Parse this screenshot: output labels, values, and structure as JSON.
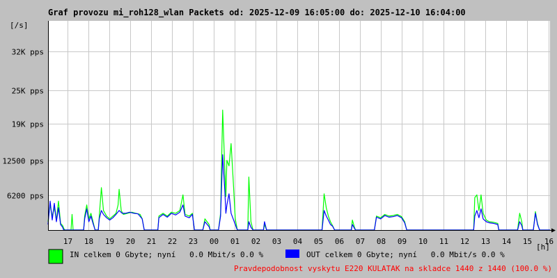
{
  "page_title": "Graf provozu mi_roh128_wlan Packets od: 2025-12-09 16:05:00 do: 2025-12-10 16:04:00",
  "legend": {
    "in_label": "IN celkem 0 Gbyte; nyní   0.0 Mbit/s 0.0 %",
    "out_label": "OUT celkem 0 Gbyte; nyní   0.0 Mbit/s 0.0 %"
  },
  "footer_note": "Pravdepodobnost vyskytu E220 KULATAK na skladce 1440 z 1440 (100.0 %)",
  "colors": {
    "background": "#c0c0c0",
    "plot": "#ffffff",
    "grid": "#c8c8c8",
    "in": "#00ff00",
    "out": "#0000ff",
    "note": "#ff0000"
  },
  "chart_data": {
    "type": "area",
    "ylabel": "[/s]",
    "xlabel": "[h]",
    "yticks": [
      {
        "value": 6200,
        "label": "6200 pps"
      },
      {
        "value": 12500,
        "label": "12500 pps"
      },
      {
        "value": 19000,
        "label": "19K pps"
      },
      {
        "value": 25000,
        "label": "25K pps"
      },
      {
        "value": 32000,
        "label": "32K pps"
      }
    ],
    "xticks": [
      "17",
      "18",
      "19",
      "20",
      "21",
      "22",
      "23",
      "00",
      "01",
      "02",
      "03",
      "04",
      "05",
      "06",
      "07",
      "08",
      "09",
      "10",
      "11",
      "12",
      "13",
      "14",
      "15",
      "16"
    ],
    "x_range_hours": [
      0,
      24
    ],
    "x_first_tick_offset_hours": 0.917,
    "ylim": [
      0,
      37500
    ],
    "grid": true,
    "series": [
      {
        "name": "IN",
        "color": "#00ff00",
        "points": [
          [
            0.0,
            1500
          ],
          [
            0.1,
            4500
          ],
          [
            0.2,
            2500
          ],
          [
            0.3,
            4000
          ],
          [
            0.4,
            1800
          ],
          [
            0.5,
            5200
          ],
          [
            0.6,
            1200
          ],
          [
            0.7,
            800
          ],
          [
            0.75,
            300
          ],
          [
            0.8,
            0
          ],
          [
            1.1,
            0
          ],
          [
            1.15,
            2800
          ],
          [
            1.2,
            0
          ],
          [
            1.7,
            0
          ],
          [
            1.75,
            2500
          ],
          [
            1.85,
            4500
          ],
          [
            1.95,
            2000
          ],
          [
            2.05,
            3000
          ],
          [
            2.15,
            1500
          ],
          [
            2.25,
            0
          ],
          [
            2.4,
            0
          ],
          [
            2.45,
            2500
          ],
          [
            2.55,
            7600
          ],
          [
            2.65,
            3500
          ],
          [
            2.8,
            2500
          ],
          [
            2.95,
            2000
          ],
          [
            3.1,
            2500
          ],
          [
            3.25,
            3000
          ],
          [
            3.35,
            4500
          ],
          [
            3.4,
            7300
          ],
          [
            3.5,
            3500
          ],
          [
            3.6,
            2800
          ],
          [
            3.8,
            3000
          ],
          [
            4.0,
            3200
          ],
          [
            4.2,
            3000
          ],
          [
            4.4,
            2800
          ],
          [
            4.5,
            2000
          ],
          [
            4.6,
            0
          ],
          [
            5.25,
            0
          ],
          [
            5.3,
            2500
          ],
          [
            5.5,
            3000
          ],
          [
            5.7,
            2500
          ],
          [
            5.9,
            3200
          ],
          [
            6.1,
            3000
          ],
          [
            6.3,
            3500
          ],
          [
            6.45,
            6300
          ],
          [
            6.55,
            2800
          ],
          [
            6.75,
            2500
          ],
          [
            6.9,
            3000
          ],
          [
            7.0,
            0
          ],
          [
            7.4,
            0
          ],
          [
            7.5,
            2000
          ],
          [
            7.7,
            1000
          ],
          [
            7.75,
            0
          ],
          [
            8.15,
            0
          ],
          [
            8.25,
            3000
          ],
          [
            8.35,
            21500
          ],
          [
            8.45,
            11000
          ],
          [
            8.5,
            6000
          ],
          [
            8.55,
            12500
          ],
          [
            8.65,
            11500
          ],
          [
            8.75,
            15500
          ],
          [
            8.85,
            9000
          ],
          [
            8.95,
            2000
          ],
          [
            9.05,
            0
          ],
          [
            9.55,
            0
          ],
          [
            9.6,
            9500
          ],
          [
            9.7,
            1500
          ],
          [
            9.8,
            0
          ],
          [
            10.3,
            0
          ],
          [
            10.35,
            1000
          ],
          [
            10.45,
            0
          ],
          [
            13.1,
            0
          ],
          [
            13.2,
            6500
          ],
          [
            13.3,
            4000
          ],
          [
            13.4,
            2500
          ],
          [
            13.5,
            1500
          ],
          [
            13.6,
            800
          ],
          [
            13.7,
            0
          ],
          [
            14.5,
            0
          ],
          [
            14.55,
            1800
          ],
          [
            14.65,
            500
          ],
          [
            14.7,
            0
          ],
          [
            15.6,
            0
          ],
          [
            15.7,
            2500
          ],
          [
            15.9,
            2200
          ],
          [
            16.1,
            2800
          ],
          [
            16.3,
            2500
          ],
          [
            16.5,
            2600
          ],
          [
            16.7,
            2800
          ],
          [
            16.9,
            2400
          ],
          [
            17.05,
            1500
          ],
          [
            17.15,
            0
          ],
          [
            20.35,
            0
          ],
          [
            20.4,
            5800
          ],
          [
            20.5,
            6300
          ],
          [
            20.6,
            3500
          ],
          [
            20.7,
            6300
          ],
          [
            20.8,
            3000
          ],
          [
            20.95,
            1800
          ],
          [
            21.1,
            1500
          ],
          [
            21.3,
            1400
          ],
          [
            21.5,
            1200
          ],
          [
            21.55,
            0
          ],
          [
            22.45,
            0
          ],
          [
            22.55,
            3000
          ],
          [
            22.65,
            1500
          ],
          [
            22.7,
            0
          ],
          [
            23.2,
            0
          ],
          [
            23.3,
            3300
          ],
          [
            23.4,
            1200
          ],
          [
            23.5,
            0
          ],
          [
            24.0,
            0
          ]
        ]
      },
      {
        "name": "OUT",
        "color": "#0000ff",
        "points": [
          [
            0.0,
            1000
          ],
          [
            0.1,
            5200
          ],
          [
            0.2,
            1800
          ],
          [
            0.3,
            4800
          ],
          [
            0.4,
            1500
          ],
          [
            0.5,
            4000
          ],
          [
            0.6,
            1000
          ],
          [
            0.7,
            500
          ],
          [
            0.75,
            0
          ],
          [
            1.7,
            0
          ],
          [
            1.75,
            2000
          ],
          [
            1.85,
            3800
          ],
          [
            1.95,
            1500
          ],
          [
            2.05,
            2500
          ],
          [
            2.15,
            1200
          ],
          [
            2.25,
            0
          ],
          [
            2.4,
            0
          ],
          [
            2.45,
            2000
          ],
          [
            2.55,
            3500
          ],
          [
            2.65,
            2800
          ],
          [
            2.8,
            2200
          ],
          [
            2.95,
            1800
          ],
          [
            3.1,
            2200
          ],
          [
            3.25,
            2800
          ],
          [
            3.4,
            3500
          ],
          [
            3.55,
            3000
          ],
          [
            3.7,
            3000
          ],
          [
            3.9,
            3200
          ],
          [
            4.1,
            3000
          ],
          [
            4.3,
            2900
          ],
          [
            4.5,
            2000
          ],
          [
            4.6,
            0
          ],
          [
            5.25,
            0
          ],
          [
            5.3,
            2200
          ],
          [
            5.5,
            2800
          ],
          [
            5.7,
            2300
          ],
          [
            5.9,
            3000
          ],
          [
            6.1,
            2700
          ],
          [
            6.3,
            3200
          ],
          [
            6.45,
            4500
          ],
          [
            6.55,
            2500
          ],
          [
            6.75,
            2200
          ],
          [
            6.9,
            2800
          ],
          [
            7.0,
            0
          ],
          [
            7.4,
            0
          ],
          [
            7.5,
            1500
          ],
          [
            7.7,
            600
          ],
          [
            7.75,
            0
          ],
          [
            8.15,
            0
          ],
          [
            8.25,
            2500
          ],
          [
            8.35,
            13500
          ],
          [
            8.45,
            7000
          ],
          [
            8.5,
            3000
          ],
          [
            8.55,
            4500
          ],
          [
            8.65,
            6500
          ],
          [
            8.75,
            3000
          ],
          [
            8.85,
            2000
          ],
          [
            8.95,
            1000
          ],
          [
            9.05,
            0
          ],
          [
            9.55,
            0
          ],
          [
            9.6,
            1500
          ],
          [
            9.7,
            500
          ],
          [
            9.8,
            0
          ],
          [
            10.3,
            0
          ],
          [
            10.35,
            1500
          ],
          [
            10.45,
            0
          ],
          [
            13.1,
            0
          ],
          [
            13.2,
            3500
          ],
          [
            13.3,
            2500
          ],
          [
            13.4,
            1800
          ],
          [
            13.5,
            1000
          ],
          [
            13.6,
            700
          ],
          [
            13.7,
            0
          ],
          [
            14.5,
            0
          ],
          [
            14.55,
            1000
          ],
          [
            14.65,
            300
          ],
          [
            14.7,
            0
          ],
          [
            15.6,
            0
          ],
          [
            15.7,
            2300
          ],
          [
            15.9,
            2000
          ],
          [
            16.1,
            2600
          ],
          [
            16.3,
            2300
          ],
          [
            16.5,
            2400
          ],
          [
            16.7,
            2600
          ],
          [
            16.9,
            2200
          ],
          [
            17.05,
            1300
          ],
          [
            17.15,
            0
          ],
          [
            20.35,
            0
          ],
          [
            20.4,
            2500
          ],
          [
            20.5,
            3500
          ],
          [
            20.6,
            2200
          ],
          [
            20.7,
            3800
          ],
          [
            20.8,
            2000
          ],
          [
            20.95,
            1500
          ],
          [
            21.1,
            1300
          ],
          [
            21.3,
            1200
          ],
          [
            21.5,
            1000
          ],
          [
            21.55,
            0
          ],
          [
            22.45,
            0
          ],
          [
            22.55,
            1500
          ],
          [
            22.65,
            800
          ],
          [
            22.7,
            0
          ],
          [
            23.2,
            0
          ],
          [
            23.3,
            3000
          ],
          [
            23.4,
            1000
          ],
          [
            23.5,
            0
          ],
          [
            24.0,
            0
          ]
        ]
      }
    ]
  }
}
